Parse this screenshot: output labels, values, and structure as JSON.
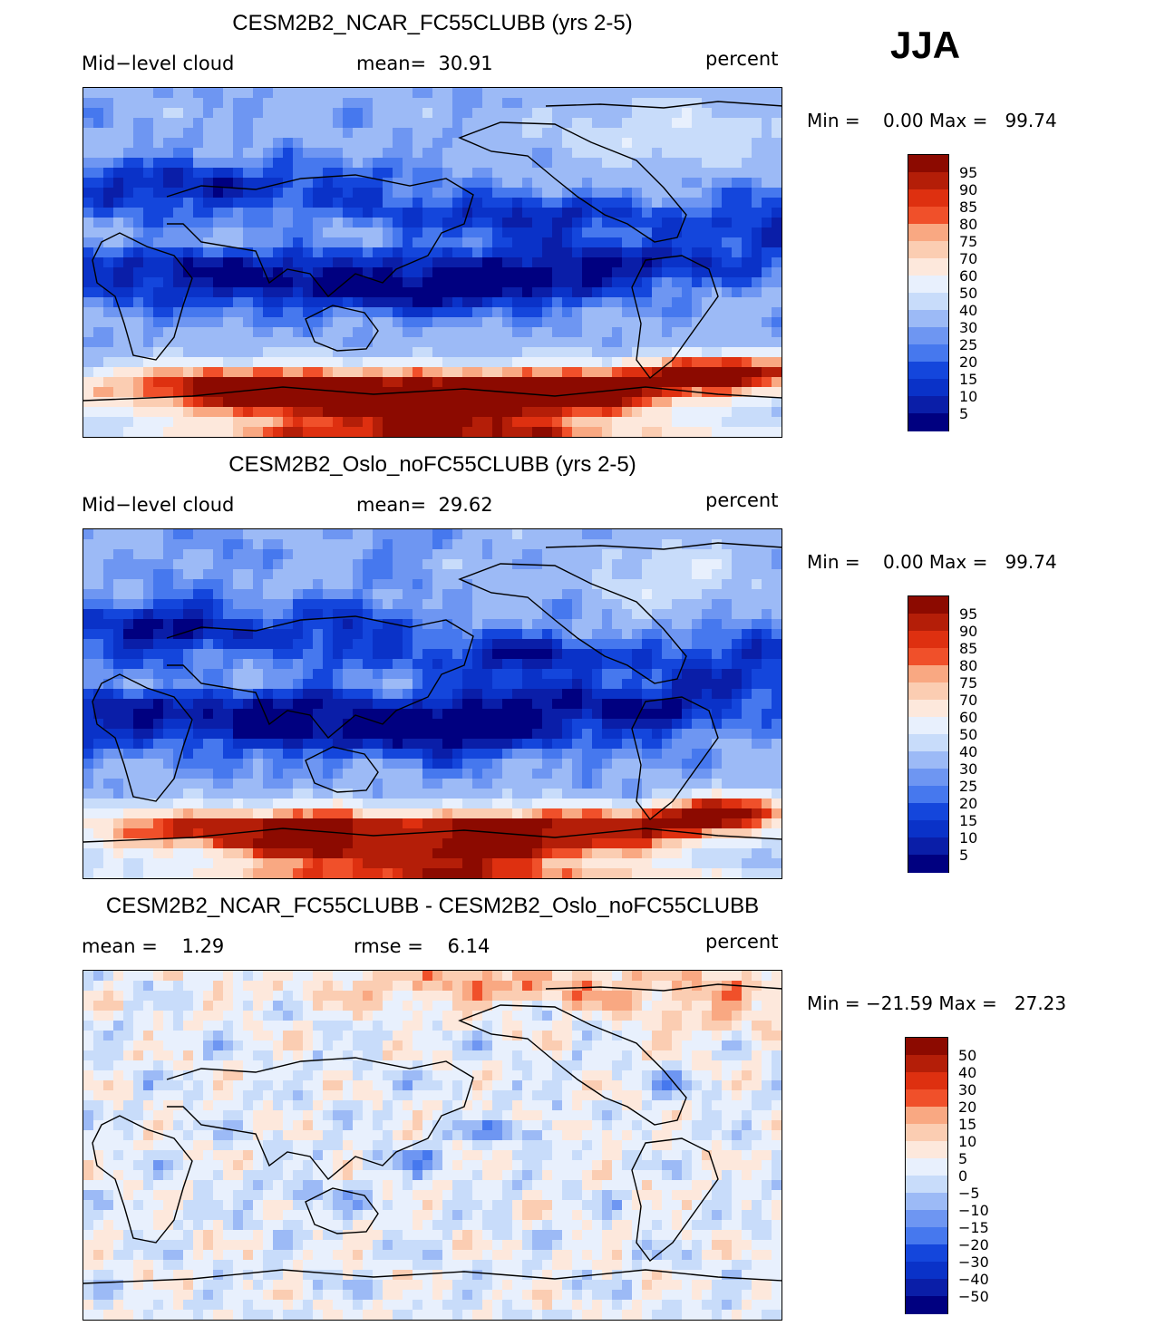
{
  "season": "JJA",
  "colors": {
    "abs": [
      "#000080",
      "#0a1ea8",
      "#0a32c8",
      "#1446dc",
      "#2a5ae6",
      "#4678ee",
      "#6e96f2",
      "#9cbaf6",
      "#c8dcfa",
      "#e8f0fd",
      "#fde8dc",
      "#fbcdb2",
      "#f9a882",
      "#f58050",
      "#f0502a",
      "#de3010",
      "#b41e08",
      "#8c0a00"
    ],
    "diff": [
      "#000080",
      "#0a1ea8",
      "#0a32c8",
      "#1446dc",
      "#2a5ae6",
      "#4678ee",
      "#6e96f2",
      "#9cbaf6",
      "#c8dcfa",
      "#e8f0fd",
      "#fde8dc",
      "#fbcdb2",
      "#f9a882",
      "#f58050",
      "#f0502a",
      "#de3010",
      "#b41e08",
      "#8c0a00"
    ]
  },
  "panels": [
    {
      "title": "CESM2B2_NCAR_FC55CLUBB (yrs 2-5)",
      "left_label": "Mid−level cloud",
      "center_label": "mean=  30.91",
      "units": "percent",
      "minmax": "Min =    0.00 Max =   99.74",
      "colorbar_labels": [
        "95",
        "90",
        "85",
        "80",
        "75",
        "70",
        "60",
        "50",
        "40",
        "30",
        "25",
        "20",
        "15",
        "10",
        "5"
      ]
    },
    {
      "title": "CESM2B2_Oslo_noFC55CLUBB (yrs 2-5)",
      "left_label": "Mid−level cloud",
      "center_label": "mean=  29.62",
      "units": "percent",
      "minmax": "Min =    0.00 Max =   99.74",
      "colorbar_labels": [
        "95",
        "90",
        "85",
        "80",
        "75",
        "70",
        "60",
        "50",
        "40",
        "30",
        "25",
        "20",
        "15",
        "10",
        "5"
      ]
    },
    {
      "title": "CESM2B2_NCAR_FC55CLUBB - CESM2B2_Oslo_noFC55CLUBB",
      "left_label": "mean =    1.29",
      "center_label": "rmse =    6.14",
      "units": "percent",
      "minmax": "Min = −21.59 Max =   27.23",
      "colorbar_labels": [
        "50",
        "40",
        "30",
        "20",
        "15",
        "10",
        "5",
        "0",
        "−5",
        "−10",
        "−15",
        "−20",
        "−30",
        "−40",
        "−50"
      ]
    }
  ],
  "chart_data": [
    {
      "type": "heatmap",
      "title": "CESM2B2_NCAR_FC55CLUBB (yrs 2-5)",
      "variable": "Mid−level cloud",
      "units": "percent",
      "mean": 30.91,
      "min": 0.0,
      "max": 99.74,
      "contour_levels": [
        5,
        10,
        15,
        20,
        25,
        30,
        40,
        50,
        60,
        70,
        75,
        80,
        85,
        90,
        95
      ]
    },
    {
      "type": "heatmap",
      "title": "CESM2B2_Oslo_noFC55CLUBB (yrs 2-5)",
      "variable": "Mid−level cloud",
      "units": "percent",
      "mean": 29.62,
      "min": 0.0,
      "max": 99.74,
      "contour_levels": [
        5,
        10,
        15,
        20,
        25,
        30,
        40,
        50,
        60,
        70,
        75,
        80,
        85,
        90,
        95
      ]
    },
    {
      "type": "heatmap",
      "title": "CESM2B2_NCAR_FC55CLUBB - CESM2B2_Oslo_noFC55CLUBB",
      "units": "percent",
      "mean": 1.29,
      "rmse": 6.14,
      "min": -21.59,
      "max": 27.23,
      "contour_levels": [
        -50,
        -40,
        -30,
        -20,
        -15,
        -10,
        -5,
        0,
        5,
        10,
        15,
        20,
        30,
        40,
        50
      ]
    }
  ]
}
